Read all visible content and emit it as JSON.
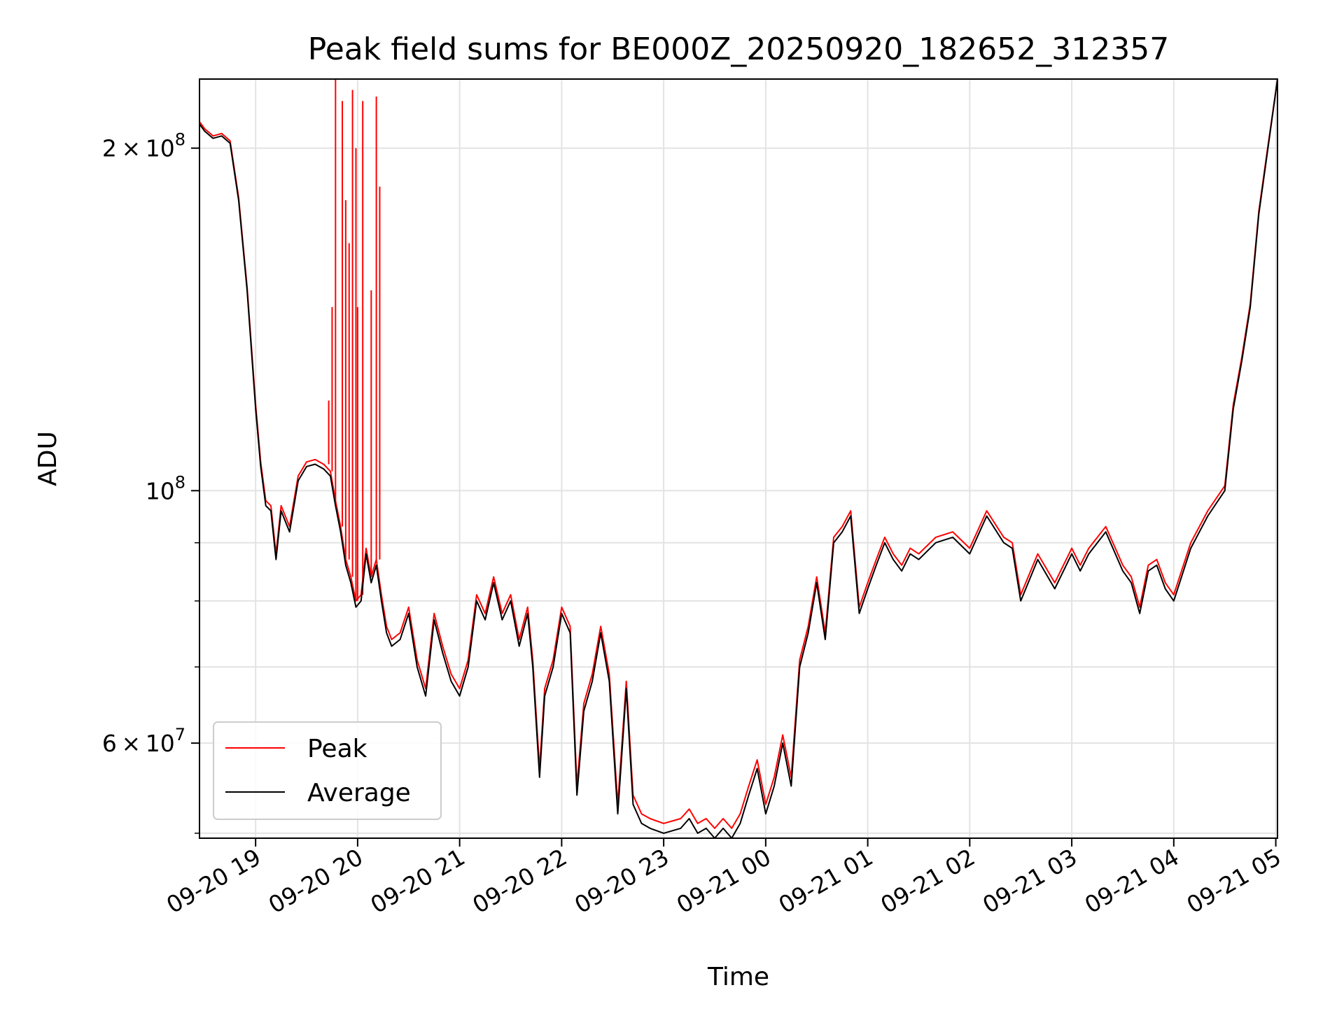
{
  "chart_data": {
    "type": "line",
    "title": "Peak field sums for BE000Z_20250920_182652_312357",
    "xlabel": "Time",
    "ylabel": "ADU",
    "yscale": "log",
    "grid": true,
    "legend_position": "lower-left",
    "xlim": [
      "2025-09-20 18:27",
      "2025-09-21 05:01"
    ],
    "ylim": [
      49500000,
      230000000
    ],
    "x_ticks": [
      "09-20 19",
      "09-20 20",
      "09-20 21",
      "09-20 22",
      "09-20 23",
      "09-21 00",
      "09-21 01",
      "09-21 02",
      "09-21 03",
      "09-21 04",
      "09-21 05"
    ],
    "y_ticks": [
      {
        "value": 60000000,
        "base": "6",
        "exp": "7",
        "with_mantissa": true
      },
      {
        "value": 100000000,
        "base": "10",
        "exp": "8",
        "with_mantissa": false
      },
      {
        "value": 200000000,
        "base": "2",
        "exp": "8",
        "with_mantissa": true
      }
    ],
    "y_minor_ticks": [
      50000000,
      70000000,
      80000000,
      90000000
    ],
    "x": [
      "2025-09-20 18:27",
      "2025-09-20 18:30",
      "2025-09-20 18:35",
      "2025-09-20 18:40",
      "2025-09-20 18:45",
      "2025-09-20 18:50",
      "2025-09-20 18:55",
      "2025-09-20 18:58",
      "2025-09-20 19:00",
      "2025-09-20 19:03",
      "2025-09-20 19:06",
      "2025-09-20 19:09",
      "2025-09-20 19:12",
      "2025-09-20 19:15",
      "2025-09-20 19:20",
      "2025-09-20 19:25",
      "2025-09-20 19:30",
      "2025-09-20 19:35",
      "2025-09-20 19:40",
      "2025-09-20 19:44",
      "2025-09-20 19:47",
      "2025-09-20 19:50",
      "2025-09-20 19:53",
      "2025-09-20 19:56",
      "2025-09-20 19:59",
      "2025-09-20 20:02",
      "2025-09-20 20:05",
      "2025-09-20 20:08",
      "2025-09-20 20:11",
      "2025-09-20 20:14",
      "2025-09-20 20:17",
      "2025-09-20 20:20",
      "2025-09-20 20:25",
      "2025-09-20 20:30",
      "2025-09-20 20:35",
      "2025-09-20 20:40",
      "2025-09-20 20:45",
      "2025-09-20 20:50",
      "2025-09-20 20:55",
      "2025-09-20 21:00",
      "2025-09-20 21:05",
      "2025-09-20 21:10",
      "2025-09-20 21:15",
      "2025-09-20 21:20",
      "2025-09-20 21:25",
      "2025-09-20 21:30",
      "2025-09-20 21:35",
      "2025-09-20 21:40",
      "2025-09-20 21:43",
      "2025-09-20 21:47",
      "2025-09-20 21:50",
      "2025-09-20 21:55",
      "2025-09-20 22:00",
      "2025-09-20 22:05",
      "2025-09-20 22:09",
      "2025-09-20 22:13",
      "2025-09-20 22:18",
      "2025-09-20 22:23",
      "2025-09-20 22:28",
      "2025-09-20 22:33",
      "2025-09-20 22:38",
      "2025-09-20 22:42",
      "2025-09-20 22:47",
      "2025-09-20 22:52",
      "2025-09-20 23:00",
      "2025-09-20 23:10",
      "2025-09-20 23:15",
      "2025-09-20 23:20",
      "2025-09-20 23:25",
      "2025-09-20 23:30",
      "2025-09-20 23:35",
      "2025-09-20 23:40",
      "2025-09-20 23:45",
      "2025-09-20 23:50",
      "2025-09-20 23:55",
      "2025-09-21 00:00",
      "2025-09-21 00:05",
      "2025-09-21 00:10",
      "2025-09-21 00:15",
      "2025-09-21 00:20",
      "2025-09-21 00:25",
      "2025-09-21 00:30",
      "2025-09-21 00:35",
      "2025-09-21 00:40",
      "2025-09-21 00:45",
      "2025-09-21 00:50",
      "2025-09-21 00:55",
      "2025-09-21 01:00",
      "2025-09-21 01:05",
      "2025-09-21 01:10",
      "2025-09-21 01:15",
      "2025-09-21 01:20",
      "2025-09-21 01:25",
      "2025-09-21 01:30",
      "2025-09-21 01:40",
      "2025-09-21 01:50",
      "2025-09-21 02:00",
      "2025-09-21 02:10",
      "2025-09-21 02:20",
      "2025-09-21 02:25",
      "2025-09-21 02:30",
      "2025-09-21 02:40",
      "2025-09-21 02:50",
      "2025-09-21 03:00",
      "2025-09-21 03:05",
      "2025-09-21 03:10",
      "2025-09-21 03:20",
      "2025-09-21 03:30",
      "2025-09-21 03:35",
      "2025-09-21 03:40",
      "2025-09-21 03:45",
      "2025-09-21 03:50",
      "2025-09-21 03:55",
      "2025-09-21 04:00",
      "2025-09-21 04:10",
      "2025-09-21 04:20",
      "2025-09-21 04:30",
      "2025-09-21 04:35",
      "2025-09-21 04:40",
      "2025-09-21 04:45",
      "2025-09-21 04:50",
      "2025-09-21 04:55",
      "2025-09-21 05:01"
    ],
    "series": [
      {
        "name": "Average",
        "color": "#000000",
        "values": [
          210000000,
          207000000,
          204000000,
          205000000,
          202000000,
          180000000,
          150000000,
          130000000,
          118000000,
          105000000,
          97000000,
          96000000,
          87000000,
          96000000,
          92000000,
          102000000,
          105000000,
          105500000,
          104500000,
          103000000,
          97000000,
          92000000,
          86000000,
          83000000,
          79000000,
          80000000,
          88000000,
          83000000,
          86000000,
          80000000,
          75000000,
          73000000,
          74000000,
          78000000,
          70000000,
          66000000,
          77000000,
          72000000,
          68000000,
          66000000,
          70000000,
          80000000,
          77000000,
          83000000,
          77000000,
          80000000,
          73000000,
          78000000,
          70000000,
          56000000,
          66000000,
          70000000,
          78000000,
          75000000,
          54000000,
          64000000,
          68000000,
          75000000,
          68000000,
          52000000,
          67000000,
          53000000,
          51000000,
          50500000,
          50000000,
          50500000,
          51500000,
          50000000,
          50500000,
          49500000,
          50500000,
          49500000,
          51000000,
          54000000,
          57000000,
          52000000,
          55000000,
          60000000,
          55000000,
          70000000,
          75000000,
          83000000,
          74000000,
          90000000,
          92000000,
          95000000,
          78000000,
          82000000,
          86000000,
          90000000,
          87000000,
          85000000,
          88000000,
          87000000,
          90000000,
          91000000,
          88000000,
          95000000,
          90000000,
          89000000,
          80000000,
          87000000,
          82000000,
          88000000,
          85000000,
          88000000,
          92000000,
          85000000,
          83000000,
          78000000,
          85000000,
          86000000,
          82000000,
          80000000,
          89000000,
          95000000,
          100000000,
          118000000,
          130000000,
          145000000,
          175000000,
          198000000,
          230000000
        ]
      },
      {
        "name": "Peak",
        "color": "#ff0000",
        "values": [
          211000000,
          208000000,
          205000000,
          206000000,
          203000000,
          181000000,
          151000000,
          131000000,
          119000000,
          106000000,
          98000000,
          97000000,
          88000000,
          97000000,
          93000000,
          103000000,
          106000000,
          106500000,
          105500000,
          104000000,
          98000000,
          93000000,
          87000000,
          84000000,
          80000000,
          81000000,
          89000000,
          84000000,
          87000000,
          81000000,
          76000000,
          74000000,
          75000000,
          79000000,
          71000000,
          67000000,
          78000000,
          73000000,
          69000000,
          67000000,
          71000000,
          81000000,
          78000000,
          84000000,
          78000000,
          81000000,
          74000000,
          79000000,
          71000000,
          57000000,
          67000000,
          71000000,
          79000000,
          76000000,
          55000000,
          65000000,
          69000000,
          76000000,
          69000000,
          53000000,
          68000000,
          54000000,
          52000000,
          51500000,
          51000000,
          51500000,
          52500000,
          51000000,
          51500000,
          50500000,
          51500000,
          50500000,
          52000000,
          55000000,
          58000000,
          53000000,
          56000000,
          61000000,
          56000000,
          71000000,
          76000000,
          84000000,
          75000000,
          91000000,
          93000000,
          96000000,
          79000000,
          83000000,
          87000000,
          91000000,
          88000000,
          86000000,
          89000000,
          88000000,
          91000000,
          92000000,
          89000000,
          96000000,
          91000000,
          90000000,
          81000000,
          88000000,
          83000000,
          89000000,
          86000000,
          89000000,
          93000000,
          86000000,
          84000000,
          79000000,
          86000000,
          87000000,
          83000000,
          81000000,
          90000000,
          96000000,
          101000000,
          119000000,
          131000000,
          146000000,
          176000000,
          199000000,
          230000000
        ],
        "spikes": [
          {
            "x": "2025-09-20 19:43",
            "y": 120000000
          },
          {
            "x": "2025-09-20 19:45",
            "y": 145000000
          },
          {
            "x": "2025-09-20 19:47",
            "y": 230000000
          },
          {
            "x": "2025-09-20 19:51",
            "y": 220000000
          },
          {
            "x": "2025-09-20 19:53",
            "y": 180000000
          },
          {
            "x": "2025-09-20 19:55",
            "y": 165000000
          },
          {
            "x": "2025-09-20 19:57",
            "y": 225000000
          },
          {
            "x": "2025-09-20 19:59",
            "y": 200000000
          },
          {
            "x": "2025-09-20 20:00",
            "y": 145000000
          },
          {
            "x": "2025-09-20 20:03",
            "y": 220000000
          },
          {
            "x": "2025-09-20 20:08",
            "y": 150000000
          },
          {
            "x": "2025-09-20 20:11",
            "y": 222000000
          },
          {
            "x": "2025-09-20 20:13",
            "y": 185000000
          }
        ]
      }
    ]
  }
}
